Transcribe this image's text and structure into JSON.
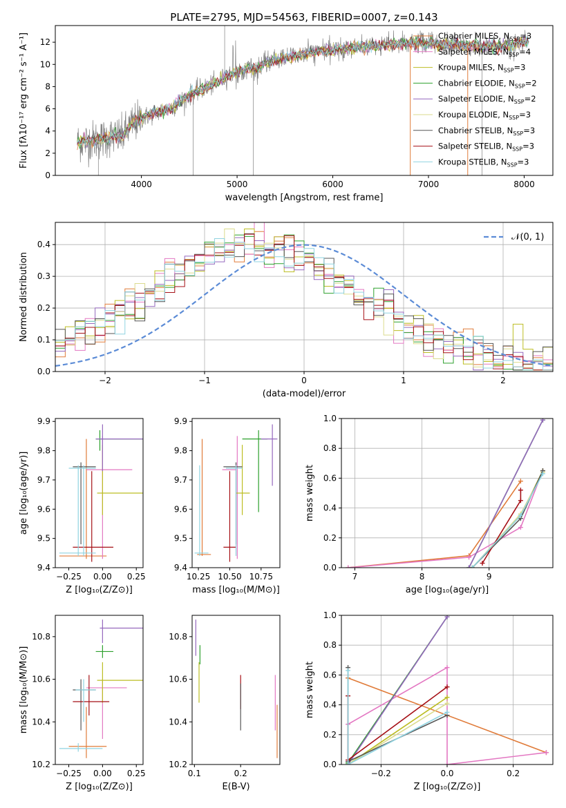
{
  "title": "PLATE=2795, MJD=54563, FIBERID=0007, z=0.143",
  "colors": {
    "series": [
      "#e07b39",
      "#e377c2",
      "#bcbd22",
      "#2ca02c",
      "#9467bd",
      "#dbdb8d",
      "#555555",
      "#a50f15",
      "#8fd3e0"
    ],
    "spectrum_data": "#808080",
    "gauss": "#5b8bd6"
  },
  "chart_data": [
    {
      "id": "spectrum",
      "type": "line",
      "xlabel": "wavelength [Angstrom, rest frame]",
      "ylabel": "Flux [fλ10⁻¹⁷ erg cm⁻² s⁻¹ A⁻¹]",
      "xlim": [
        3100,
        8300
      ],
      "ylim": [
        0,
        13.5
      ],
      "xticks": [
        4000,
        5000,
        6000,
        7000,
        8000
      ],
      "xtick_labels": [
        "4000",
        "5000",
        "6000",
        "7000",
        "8000"
      ],
      "yticks": [
        0,
        2,
        4,
        6,
        8,
        10,
        12
      ],
      "ytick_labels": [
        "0",
        "2",
        "4",
        "6",
        "8",
        "10",
        "12"
      ],
      "legend_position": "upper-right",
      "legend": [
        {
          "text": "Chabrier MILES, N",
          "sub": "SSP",
          "post": "=3"
        },
        {
          "text": "Salpeter MILES, N",
          "sub": "SSP",
          "post": "=4"
        },
        {
          "text": "Kroupa MILES, N",
          "sub": "SSP",
          "post": "=3"
        },
        {
          "text": "Chabrier ELODIE, N",
          "sub": "SSP",
          "post": "=2"
        },
        {
          "text": "Salpeter ELODIE, N",
          "sub": "SSP",
          "post": "=2"
        },
        {
          "text": "Kroupa ELODIE, N",
          "sub": "SSP",
          "post": "=3"
        },
        {
          "text": "Chabrier STELIB, N",
          "sub": "SSP",
          "post": "=3"
        },
        {
          "text": "Salpeter STELIB, N",
          "sub": "SSP",
          "post": "=3"
        },
        {
          "text": "Kroupa STELIB, N",
          "sub": "SSP",
          "post": "=3"
        }
      ],
      "continuum": [
        [
          3330,
          3.0
        ],
        [
          3450,
          3.1
        ],
        [
          3600,
          3.3
        ],
        [
          3700,
          3.5
        ],
        [
          3800,
          3.5
        ],
        [
          3900,
          4.6
        ],
        [
          4000,
          5.1
        ],
        [
          4100,
          5.5
        ],
        [
          4200,
          5.8
        ],
        [
          4300,
          6.0
        ],
        [
          4400,
          6.6
        ],
        [
          4500,
          7.2
        ],
        [
          4600,
          7.7
        ],
        [
          4700,
          8.0
        ],
        [
          4800,
          8.4
        ],
        [
          4900,
          9.0
        ],
        [
          5000,
          9.3
        ],
        [
          5100,
          9.6
        ],
        [
          5200,
          9.6
        ],
        [
          5300,
          10.1
        ],
        [
          5400,
          10.4
        ],
        [
          5500,
          10.6
        ],
        [
          5600,
          10.8
        ],
        [
          5700,
          10.9
        ],
        [
          5800,
          11.1
        ],
        [
          5900,
          11.2
        ],
        [
          6000,
          11.3
        ],
        [
          6100,
          11.4
        ],
        [
          6200,
          11.5
        ],
        [
          6300,
          11.6
        ],
        [
          6400,
          11.6
        ],
        [
          6500,
          11.7
        ],
        [
          6600,
          11.8
        ],
        [
          6700,
          11.8
        ],
        [
          6800,
          11.9
        ],
        [
          6900,
          11.9
        ],
        [
          7000,
          11.9
        ],
        [
          7100,
          11.8
        ],
        [
          7200,
          11.8
        ],
        [
          7300,
          11.8
        ],
        [
          7400,
          11.7
        ],
        [
          7500,
          11.7
        ],
        [
          7600,
          11.6
        ],
        [
          7700,
          11.7
        ],
        [
          7800,
          11.7
        ],
        [
          7900,
          11.8
        ],
        [
          8000,
          12.0
        ],
        [
          8050,
          12.2
        ]
      ]
    },
    {
      "id": "residuals",
      "type": "histogram",
      "xlabel": "(data-model)/error",
      "ylabel": "Normed distribution",
      "xlim": [
        -2.5,
        2.5
      ],
      "ylim": [
        0,
        0.47
      ],
      "xticks": [
        -2,
        -1,
        0,
        1,
        2
      ],
      "xtick_labels": [
        "−2",
        "−1",
        "0",
        "1",
        "2"
      ],
      "yticks": [
        0,
        0.1,
        0.2,
        0.3,
        0.4
      ],
      "ytick_labels": [
        "0.0",
        "0.1",
        "0.2",
        "0.3",
        "0.4"
      ],
      "legend": "𝒩(0, 1)",
      "legend_position": "upper-right",
      "gaussian": {
        "mean": 0,
        "sigma": 1
      }
    },
    {
      "id": "age-vs-Z",
      "type": "errorbar",
      "xlabel": "Z [log₁₀(Z/Z⊙)]",
      "ylabel": "age  [log₁₀(age/yr)]",
      "xlim": [
        -0.35,
        0.3
      ],
      "ylim": [
        9.4,
        9.91
      ],
      "xticks": [
        -0.25,
        0,
        0.25
      ],
      "xtick_labels": [
        "−0.25",
        "0.00",
        "0.25"
      ],
      "yticks": [
        9.4,
        9.5,
        9.6,
        9.7,
        9.8,
        9.9
      ],
      "ytick_labels": [
        "9.4",
        "9.5",
        "9.6",
        "9.7",
        "9.8",
        "9.9"
      ],
      "points": [
        {
          "s": 0,
          "x": -0.12,
          "y": 9.44,
          "xe": [
            -0.32,
            0.03
          ],
          "ye": [
            9.43,
            9.84
          ]
        },
        {
          "s": 1,
          "x": 0.0,
          "y": 9.735,
          "xe": [
            -0.12,
            0.22
          ],
          "ye": [
            9.43,
            9.85
          ]
        },
        {
          "s": 2,
          "x": 0.0,
          "y": 9.655,
          "xe": [
            -0.04,
            0.3
          ],
          "ye": [
            9.58,
            9.82
          ]
        },
        {
          "s": 3,
          "x": -0.02,
          "y": 9.84,
          "xe": [
            -0.05,
            0.3
          ],
          "ye": [
            9.8,
            9.87
          ]
        },
        {
          "s": 4,
          "x": 0.0,
          "y": 9.84,
          "xe": [
            -0.05,
            0.3
          ],
          "ye": [
            9.73,
            9.89
          ]
        },
        {
          "s": 6,
          "x": -0.16,
          "y": 9.745,
          "xe": [
            -0.22,
            -0.05
          ],
          "ye": [
            9.48,
            9.76
          ]
        },
        {
          "s": 7,
          "x": -0.08,
          "y": 9.47,
          "xe": [
            -0.22,
            0.08
          ],
          "ye": [
            9.42,
            9.73
          ]
        },
        {
          "s": 8,
          "x": -0.14,
          "y": 9.74,
          "xe": [
            -0.25,
            -0.05
          ],
          "ye": [
            9.44,
            9.75
          ]
        },
        {
          "s": 8,
          "x": -0.18,
          "y": 9.45,
          "xe": [
            -0.32,
            -0.05
          ],
          "ye": [
            9.44,
            9.75
          ]
        }
      ]
    },
    {
      "id": "age-vs-mass",
      "type": "errorbar",
      "xlabel": "mass [log₁₀(M/M⊙)]",
      "ylabel": "",
      "xlim": [
        10.2,
        10.9
      ],
      "ylim": [
        9.4,
        9.91
      ],
      "xticks": [
        10.25,
        10.5,
        10.75
      ],
      "xtick_labels": [
        "10.25",
        "10.50",
        "10.75"
      ],
      "yticks": [
        9.4,
        9.5,
        9.6,
        9.7,
        9.8,
        9.9
      ],
      "ytick_labels": [
        "9.4",
        "9.5",
        "9.6",
        "9.7",
        "9.8",
        "9.9"
      ],
      "points": [
        {
          "s": 0,
          "x": 10.28,
          "y": 9.445,
          "xe": [
            10.24,
            10.35
          ],
          "ye": [
            9.44,
            9.84
          ]
        },
        {
          "s": 1,
          "x": 10.56,
          "y": 9.735,
          "xe": [
            10.44,
            10.55
          ],
          "ye": [
            9.43,
            9.85
          ]
        },
        {
          "s": 2,
          "x": 10.6,
          "y": 9.655,
          "xe": [
            10.55,
            10.66
          ],
          "ye": [
            9.58,
            9.82
          ]
        },
        {
          "s": 3,
          "x": 10.73,
          "y": 9.84,
          "xe": [
            10.6,
            10.8
          ],
          "ye": [
            9.59,
            9.87
          ]
        },
        {
          "s": 4,
          "x": 10.84,
          "y": 9.84,
          "xe": [
            10.75,
            10.88
          ],
          "ye": [
            9.68,
            9.89
          ]
        },
        {
          "s": 6,
          "x": 10.55,
          "y": 9.745,
          "xe": [
            10.45,
            10.6
          ],
          "ye": [
            9.48,
            9.76
          ]
        },
        {
          "s": 7,
          "x": 10.5,
          "y": 9.47,
          "xe": [
            10.45,
            10.55
          ],
          "ye": [
            9.42,
            9.73
          ]
        },
        {
          "s": 8,
          "x": 10.55,
          "y": 9.74,
          "xe": [
            10.47,
            10.6
          ],
          "ye": [
            9.44,
            9.75
          ]
        },
        {
          "s": 8,
          "x": 10.26,
          "y": 9.45,
          "xe": [
            10.22,
            10.33
          ],
          "ye": [
            9.44,
            9.75
          ]
        }
      ]
    },
    {
      "id": "mass-weight-vs-age",
      "type": "line",
      "xlabel": "age  [log₁₀(age/yr)]",
      "ylabel": "mass weight",
      "xlim": [
        6.8,
        9.95
      ],
      "ylim": [
        0,
        1
      ],
      "xticks": [
        7,
        8,
        9
      ],
      "xtick_labels": [
        "7",
        "8",
        "9"
      ],
      "yticks": [
        0,
        0.2,
        0.4,
        0.6,
        0.8,
        1.0
      ],
      "ytick_labels": [
        "0.0",
        "0.2",
        "0.4",
        "0.6",
        "0.8",
        "1.0"
      ],
      "series": [
        {
          "s": 0,
          "x": [
            6.9,
            8.7,
            9.47
          ],
          "y": [
            0.0,
            0.08,
            0.58
          ]
        },
        {
          "s": 1,
          "x": [
            6.9,
            8.7,
            9.47,
            9.8
          ],
          "y": [
            0.0,
            0.07,
            0.27,
            0.65
          ]
        },
        {
          "s": 2,
          "x": [
            8.75,
            9.47,
            9.8
          ],
          "y": [
            0.0,
            0.35,
            0.65
          ]
        },
        {
          "s": 3,
          "x": [
            8.7,
            9.8
          ],
          "y": [
            0.0,
            0.99
          ]
        },
        {
          "s": 4,
          "x": [
            8.7,
            9.8
          ],
          "y": [
            0.0,
            0.99
          ]
        },
        {
          "s": 5,
          "x": [
            8.75,
            9.47,
            9.8
          ],
          "y": [
            0.0,
            0.36,
            0.64
          ]
        },
        {
          "s": 6,
          "x": [
            8.75,
            9.47,
            9.8
          ],
          "y": [
            0.0,
            0.33,
            0.65
          ]
        },
        {
          "s": 7,
          "x": [
            8.9,
            9.47,
            9.47
          ],
          "y": [
            0.03,
            0.45,
            0.52
          ]
        },
        {
          "s": 8,
          "x": [
            8.75,
            9.47,
            9.8
          ],
          "y": [
            0.0,
            0.35,
            0.63
          ]
        }
      ]
    },
    {
      "id": "mass-vs-Z",
      "type": "errorbar",
      "xlabel": "Z [log₁₀(Z/Z⊙)]",
      "ylabel": "mass [log₁₀(M/M⊙)]",
      "xlim": [
        -0.35,
        0.3
      ],
      "ylim": [
        10.2,
        10.9
      ],
      "xticks": [
        -0.25,
        0,
        0.25
      ],
      "xtick_labels": [
        "−0.25",
        "0.00",
        "0.25"
      ],
      "yticks": [
        10.2,
        10.4,
        10.6,
        10.8
      ],
      "ytick_labels": [
        "10.2",
        "10.4",
        "10.6",
        "10.8"
      ],
      "points": [
        {
          "s": 0,
          "x": -0.12,
          "y": 10.285,
          "xe": [
            -0.25,
            0.03
          ],
          "ye": [
            10.23,
            10.47
          ]
        },
        {
          "s": 1,
          "x": 0.0,
          "y": 10.56,
          "xe": [
            -0.12,
            0.18
          ],
          "ye": [
            10.32,
            10.6
          ]
        },
        {
          "s": 2,
          "x": 0.0,
          "y": 10.595,
          "xe": [
            -0.04,
            0.3
          ],
          "ye": [
            10.49,
            10.68
          ]
        },
        {
          "s": 3,
          "x": 0.0,
          "y": 10.73,
          "xe": [
            -0.05,
            0.08
          ],
          "ye": [
            10.7,
            10.76
          ]
        },
        {
          "s": 4,
          "x": 0.0,
          "y": 10.84,
          "xe": [
            -0.02,
            0.3
          ],
          "ye": [
            10.77,
            10.88
          ]
        },
        {
          "s": 6,
          "x": -0.16,
          "y": 10.55,
          "xe": [
            -0.22,
            -0.05
          ],
          "ye": [
            10.36,
            10.6
          ]
        },
        {
          "s": 7,
          "x": -0.1,
          "y": 10.495,
          "xe": [
            -0.22,
            0.05
          ],
          "ye": [
            10.43,
            10.62
          ]
        },
        {
          "s": 8,
          "x": -0.14,
          "y": 10.55,
          "xe": [
            -0.2,
            -0.05
          ],
          "ye": [
            10.4,
            10.6
          ]
        },
        {
          "s": 8,
          "x": -0.18,
          "y": 10.275,
          "xe": [
            -0.32,
            0.0
          ],
          "ye": [
            10.26,
            10.3
          ]
        }
      ]
    },
    {
      "id": "mass-vs-ebv",
      "type": "errorbar",
      "xlabel": "E(B-V)",
      "ylabel": "",
      "xlim": [
        0.095,
        0.285
      ],
      "ylim": [
        10.2,
        10.9
      ],
      "xticks": [
        0.1,
        0.2
      ],
      "xtick_labels": [
        "0.1",
        "0.2"
      ],
      "yticks": [
        10.2,
        10.4,
        10.6,
        10.8
      ],
      "ytick_labels": [
        "10.2",
        "10.4",
        "10.6",
        "10.8"
      ],
      "points": [
        {
          "s": 4,
          "x": 0.103,
          "y": 10.8,
          "xe": [
            0.103,
            0.103
          ],
          "ye": [
            10.71,
            10.88
          ]
        },
        {
          "s": 2,
          "x": 0.11,
          "y": 10.6,
          "xe": [
            0.11,
            0.11
          ],
          "ye": [
            10.49,
            10.68
          ]
        },
        {
          "s": 3,
          "x": 0.112,
          "y": 10.72,
          "xe": [
            0.112,
            0.112
          ],
          "ye": [
            10.67,
            10.76
          ]
        },
        {
          "s": 7,
          "x": 0.2,
          "y": 10.5,
          "xe": [
            0.2,
            0.2
          ],
          "ye": [
            10.46,
            10.62
          ]
        },
        {
          "s": 6,
          "x": 0.2,
          "y": 10.45,
          "xe": [
            0.2,
            0.2
          ],
          "ye": [
            10.36,
            10.58
          ]
        },
        {
          "s": 1,
          "x": 0.275,
          "y": 10.5,
          "xe": [
            0.275,
            0.275
          ],
          "ye": [
            10.36,
            10.62
          ]
        },
        {
          "s": 0,
          "x": 0.279,
          "y": 10.35,
          "xe": [
            0.279,
            0.279
          ],
          "ye": [
            10.23,
            10.48
          ]
        }
      ]
    },
    {
      "id": "mass-weight-vs-Z",
      "type": "line",
      "xlabel": "Z [log₁₀(Z/Z⊙)]",
      "ylabel": "mass weight",
      "xlim": [
        -0.32,
        0.32
      ],
      "ylim": [
        0,
        1
      ],
      "xticks": [
        -0.2,
        0,
        0.2
      ],
      "xtick_labels": [
        "−0.2",
        "0.0",
        "0.2"
      ],
      "yticks": [
        0,
        0.2,
        0.4,
        0.6,
        0.8,
        1.0
      ],
      "ytick_labels": [
        "0.0",
        "0.2",
        "0.4",
        "0.6",
        "0.8",
        "1.0"
      ],
      "series": [
        {
          "s": 0,
          "x": [
            -0.3,
            0.3
          ],
          "y": [
            0.58,
            0.08
          ]
        },
        {
          "s": 1,
          "x": [
            -0.3,
            0.0,
            0.0,
            0.3
          ],
          "y": [
            0.27,
            0.65,
            0.0,
            0.08
          ]
        },
        {
          "s": 2,
          "x": [
            -0.3,
            0.0
          ],
          "y": [
            0.0,
            0.45
          ]
        },
        {
          "s": 3,
          "x": [
            -0.3,
            0.0
          ],
          "y": [
            0.01,
            0.99
          ]
        },
        {
          "s": 4,
          "x": [
            -0.3,
            0.0
          ],
          "y": [
            0.0,
            0.99
          ]
        },
        {
          "s": 5,
          "x": [
            -0.3,
            0.0
          ],
          "y": [
            0.0,
            0.41
          ]
        },
        {
          "s": 6,
          "x": [
            -0.3,
            -0.3,
            0.0
          ],
          "y": [
            0.65,
            0.02,
            0.33
          ]
        },
        {
          "s": 7,
          "x": [
            -0.3,
            -0.3,
            0.0
          ],
          "y": [
            0.46,
            0.03,
            0.52
          ]
        },
        {
          "s": 8,
          "x": [
            -0.3,
            -0.3,
            0.0
          ],
          "y": [
            0.63,
            0.0,
            0.35
          ]
        }
      ]
    }
  ]
}
